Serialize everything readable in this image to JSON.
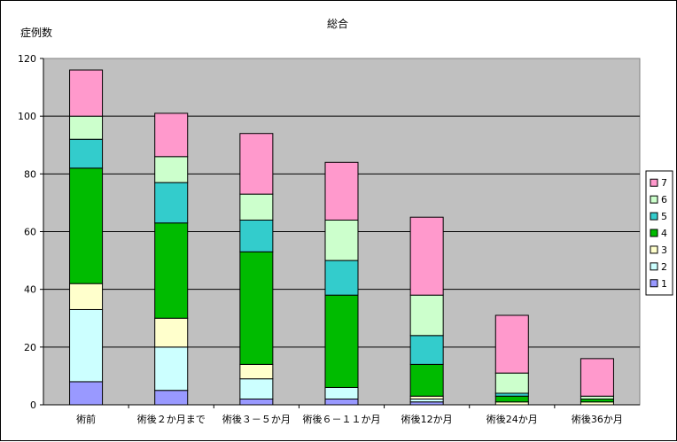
{
  "chart_data": {
    "type": "bar",
    "stacked": true,
    "title": "総合",
    "ylabel": "症例数",
    "xlabel": "",
    "ylim": [
      0,
      120
    ],
    "yticks": [
      0,
      20,
      40,
      60,
      80,
      100,
      120
    ],
    "grid": true,
    "legend_position": "right",
    "categories": [
      "術前",
      "術後２か月まで",
      "術後３－５か月",
      "術後６－１１か月",
      "術後12か月",
      "術後24か月",
      "術後36か月"
    ],
    "series": [
      {
        "name": "1",
        "color": "#9999ff",
        "values": [
          8,
          5,
          2,
          2,
          1,
          0,
          0
        ]
      },
      {
        "name": "2",
        "color": "#ccffff",
        "values": [
          25,
          15,
          7,
          4,
          1,
          0,
          0
        ]
      },
      {
        "name": "3",
        "color": "#ffffcc",
        "values": [
          9,
          10,
          5,
          0,
          1,
          1,
          1
        ]
      },
      {
        "name": "4",
        "color": "#00bb00",
        "values": [
          40,
          33,
          39,
          32,
          11,
          2,
          1
        ]
      },
      {
        "name": "5",
        "color": "#33cccc",
        "values": [
          10,
          14,
          11,
          12,
          10,
          1,
          0
        ]
      },
      {
        "name": "6",
        "color": "#ccffcc",
        "values": [
          8,
          9,
          9,
          14,
          14,
          7,
          1
        ]
      },
      {
        "name": "7",
        "color": "#ff99cc",
        "values": [
          16,
          15,
          21,
          20,
          27,
          20,
          13
        ]
      }
    ]
  }
}
